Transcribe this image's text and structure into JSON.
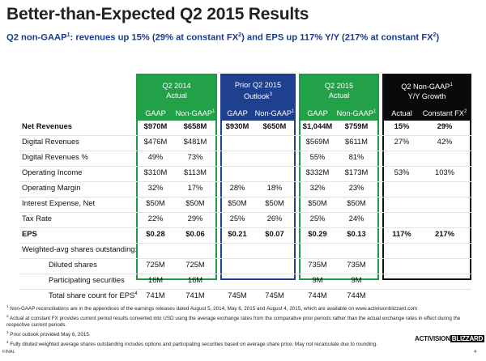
{
  "title": "Better-than-Expected Q2 2015 Results",
  "subtitle": {
    "part1": "Q2 non-GAAP",
    "sup1": "1",
    "part2": ": revenues up 15% (29% at constant FX",
    "sup2": "2",
    "part3": ") and EPS up 117% Y/Y (217% at constant FX",
    "sup3": "2",
    "part4": ")"
  },
  "groups": {
    "q2_2014": {
      "line1": "Q2 2014",
      "line2": "Actual"
    },
    "prior_q2_2015": {
      "line1": "Prior Q2 2015",
      "line2": "Outlook",
      "sup": "3"
    },
    "q2_2015": {
      "line1": "Q2 2015",
      "line2": "Actual"
    },
    "growth": {
      "line1": "Q2 Non-GAAP",
      "line1_sup": "1",
      "line2": "Y/Y Growth"
    }
  },
  "subheaders": {
    "gaap": "GAAP",
    "non_gaap": "Non-GAAP",
    "non_gaap_sup": "1",
    "actual": "Actual",
    "constant_fx": "Constant FX",
    "constant_fx_sup": "2"
  },
  "rows": [
    {
      "label": "Net Revenues",
      "v": [
        "$970M",
        "$658M",
        "$930M",
        "$650M",
        "$1,044M",
        "$759M",
        "15%",
        "29%"
      ]
    },
    {
      "label": "Digital Revenues",
      "v": [
        "$476M",
        "$481M",
        "",
        "",
        "$569M",
        "$611M",
        "27%",
        "42%"
      ]
    },
    {
      "label": "Digital Revenues %",
      "v": [
        "49%",
        "73%",
        "",
        "",
        "55%",
        "81%",
        "",
        ""
      ]
    },
    {
      "label": "Operating Income",
      "v": [
        "$310M",
        "$113M",
        "",
        "",
        "$332M",
        "$173M",
        "53%",
        "103%"
      ]
    },
    {
      "label": "Operating Margin",
      "v": [
        "32%",
        "17%",
        "28%",
        "18%",
        "32%",
        "23%",
        "",
        ""
      ]
    },
    {
      "label": "Interest Expense, Net",
      "v": [
        "$50M",
        "$50M",
        "$50M",
        "$50M",
        "$50M",
        "$50M",
        "",
        ""
      ]
    },
    {
      "label": "Tax Rate",
      "v": [
        "22%",
        "29%",
        "25%",
        "26%",
        "25%",
        "24%",
        "",
        ""
      ]
    },
    {
      "label": "EPS",
      "v": [
        "$0.28",
        "$0.06",
        "$0.21",
        "$0.07",
        "$0.29",
        "$0.13",
        "117%",
        "217%"
      ]
    },
    {
      "label": "Weighted-avg shares outstanding:",
      "v": [
        "",
        "",
        "",
        "",
        "",
        "",
        "",
        ""
      ]
    },
    {
      "label": "Diluted shares",
      "v": [
        "725M",
        "725M",
        "",
        "",
        "735M",
        "735M",
        "",
        ""
      ]
    },
    {
      "label": "Participating securities",
      "v": [
        "16M",
        "16M",
        "",
        "",
        "9M",
        "9M",
        "",
        ""
      ]
    },
    {
      "label": "Total share count for EPS",
      "label_sup": "4",
      "v": [
        "741M",
        "741M",
        "745M",
        "745M",
        "744M",
        "744M",
        "",
        ""
      ]
    }
  ],
  "footnotes": [
    {
      "sup": "1",
      "text": "Non-GAAP reconciliations are in the appendices of the earnings releases dated August 5, 2014, May 6, 2015 and August 4, 2015, which are available on www.activisionblizzard.com"
    },
    {
      "sup": "2",
      "text": "Actual at constant FX provides current period results converted into USD using the average exchange rates from the comparative prior periods rather than the actual exchange rates in effect during the respective current periods."
    },
    {
      "sup": "3",
      "text": "Prior outlook provided May 6, 2015."
    },
    {
      "sup": "4",
      "text": "Fully diluted weighted average shares outstanding includes options and participating securities based on average share price. May not recalculate due to rounding."
    }
  ],
  "footer": {
    "final": "FINAL",
    "page": "4",
    "logo_a": "ACTIVISION",
    "logo_b": "BLIZZARD"
  },
  "colors": {
    "green": "#22a148",
    "blue": "#1f3f8f",
    "black": "#0a0a0a",
    "subtitle": "#1b3a8c"
  }
}
